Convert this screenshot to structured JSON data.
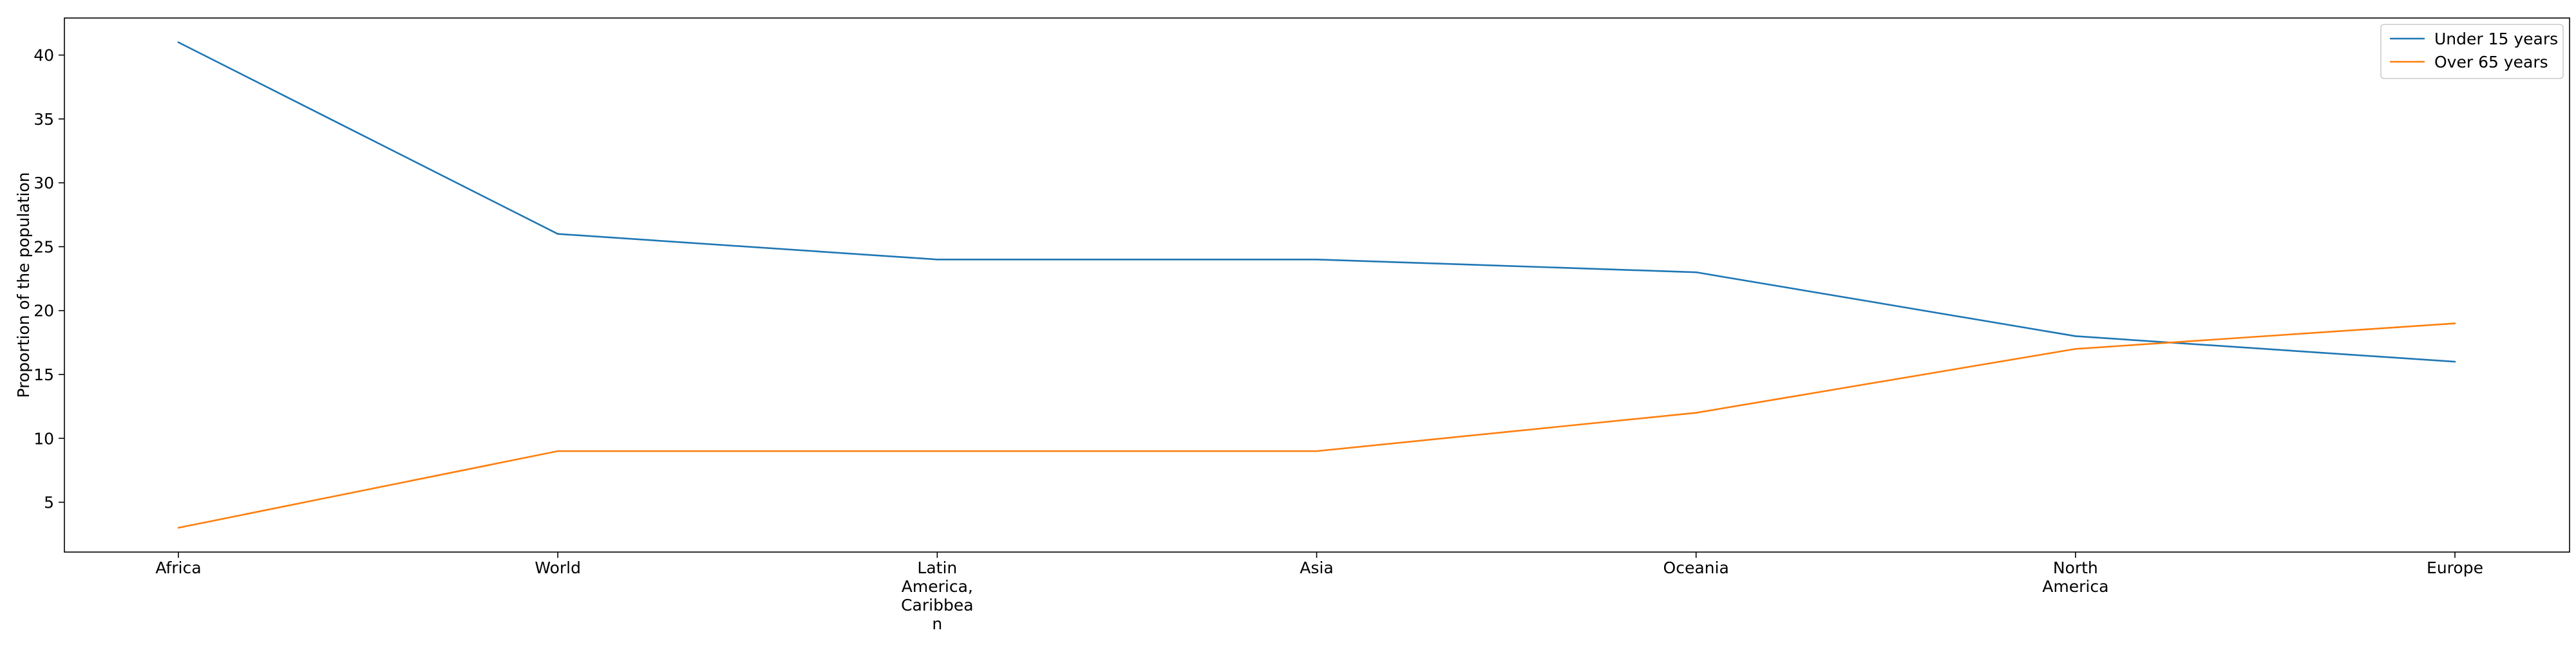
{
  "chart_data": {
    "type": "line",
    "title": "",
    "xlabel": "",
    "ylabel": "Proportion of the population",
    "categories": [
      "Africa",
      "World",
      "Latin America, Caribbean",
      "Asia",
      "Oceania",
      "North America",
      "Europe"
    ],
    "x_tick_lines": [
      [
        "Africa"
      ],
      [
        "World"
      ],
      [
        "Latin",
        "America,",
        "Caribbea",
        "n"
      ],
      [
        "Asia"
      ],
      [
        "Oceania"
      ],
      [
        "North",
        "America"
      ],
      [
        "Europe"
      ]
    ],
    "series": [
      {
        "name": "Under 15 years",
        "values": [
          41,
          26,
          24,
          24,
          23,
          18,
          16
        ],
        "color": "#1f77b4"
      },
      {
        "name": "Over 65 years",
        "values": [
          3,
          9,
          9,
          9,
          12,
          17,
          19
        ],
        "color": "#ff7f0e"
      }
    ],
    "ylim": [
      1.1,
      42.9
    ],
    "yticks": [
      5,
      10,
      15,
      20,
      25,
      30,
      35,
      40
    ],
    "grid": false,
    "legend_position": "top-right"
  }
}
